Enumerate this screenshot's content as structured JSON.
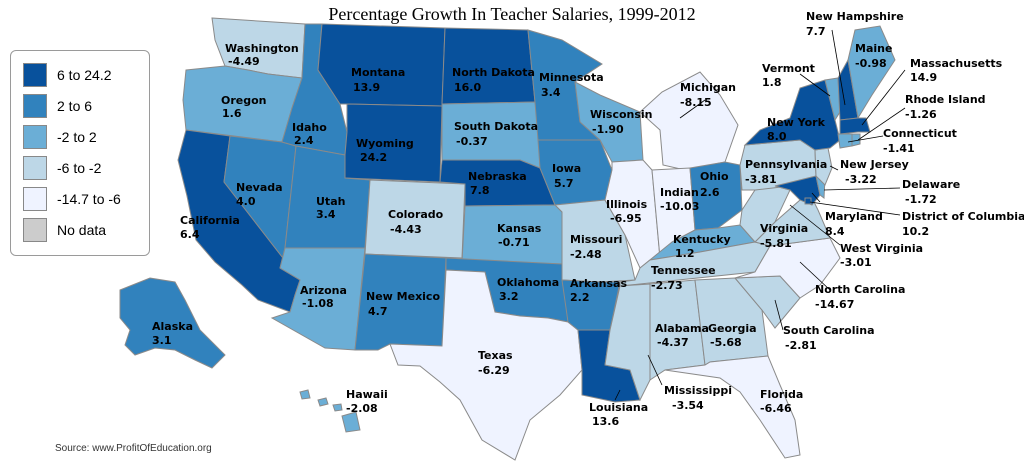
{
  "title": "Percentage Growth In Teacher Salaries, 1999-2012",
  "source": "Source: www.ProfitOfEducation.org",
  "colors": {
    "c1": "#08519c",
    "c2": "#3182bd",
    "c3": "#6baed6",
    "c4": "#bdd7e7",
    "c5": "#eff3ff",
    "nodata": "#cccccc",
    "border": "#8a8a8a"
  },
  "legend": [
    {
      "label": "6 to 24.2",
      "color": "#08519c"
    },
    {
      "label": "2 to 6",
      "color": "#3182bd"
    },
    {
      "label": "-2 to 2",
      "color": "#6baed6"
    },
    {
      "label": "-6 to -2",
      "color": "#bdd7e7"
    },
    {
      "label": "-14.7 to -6",
      "color": "#eff3ff"
    },
    {
      "label": "No data",
      "color": "#cccccc"
    }
  ],
  "states": {
    "washington": {
      "name": "Washington",
      "value": "-4.49"
    },
    "oregon": {
      "name": "Oregon",
      "value": "1.6"
    },
    "california": {
      "name": "California",
      "value": "6.4"
    },
    "nevada": {
      "name": "Nevada",
      "value": "4.0"
    },
    "idaho": {
      "name": "Idaho",
      "value": "2.4"
    },
    "montana": {
      "name": "Montana",
      "value": "13.9"
    },
    "wyoming": {
      "name": "Wyoming",
      "value": "24.2"
    },
    "utah": {
      "name": "Utah",
      "value": "3.4"
    },
    "arizona": {
      "name": "Arizona",
      "value": "-1.08"
    },
    "colorado": {
      "name": "Colorado",
      "value": "-4.43"
    },
    "new_mexico": {
      "name": "New Mexico",
      "value": "4.7"
    },
    "north_dakota": {
      "name": "North Dakota",
      "value": "16.0"
    },
    "south_dakota": {
      "name": "South Dakota",
      "value": "-0.37"
    },
    "nebraska": {
      "name": "Nebraska",
      "value": "7.8"
    },
    "kansas": {
      "name": "Kansas",
      "value": "-0.71"
    },
    "oklahoma": {
      "name": "Oklahoma",
      "value": "3.2"
    },
    "texas": {
      "name": "Texas",
      "value": "-6.29"
    },
    "minnesota": {
      "name": "Minnesota",
      "value": "3.4"
    },
    "iowa": {
      "name": "Iowa",
      "value": "5.7"
    },
    "missouri": {
      "name": "Missouri",
      "value": "-2.48"
    },
    "arkansas": {
      "name": "Arkansas",
      "value": "2.2"
    },
    "louisiana": {
      "name": "Louisiana",
      "value": "13.6"
    },
    "wisconsin": {
      "name": "Wisconsin",
      "value": "-1.90"
    },
    "illinois": {
      "name": "Illinois",
      "value": "-6.95"
    },
    "michigan": {
      "name": "Michigan",
      "value": "-8.15"
    },
    "indiana": {
      "name": "Indian",
      "value": "-10.03"
    },
    "ohio": {
      "name": "Ohio",
      "value": "2.6"
    },
    "kentucky": {
      "name": "Kentucky",
      "value": "1.2"
    },
    "tennessee": {
      "name": "Tennessee",
      "value": "-2.73"
    },
    "mississippi": {
      "name": "Mississippi",
      "value": "-3.54"
    },
    "alabama": {
      "name": "Alabama",
      "value": "-4.37"
    },
    "georgia": {
      "name": "Georgia",
      "value": "-5.68"
    },
    "florida": {
      "name": "Florida",
      "value": "-6.46"
    },
    "south_carolina": {
      "name": "South Carolina",
      "value": "-2.81"
    },
    "north_carolina": {
      "name": "North Carolina",
      "value": "-14.67"
    },
    "virginia": {
      "name": "Virginia",
      "value": "-5.81"
    },
    "west_virginia": {
      "name": "West Virginia",
      "value": "-3.01"
    },
    "pennsylvania": {
      "name": "Pennsylvania",
      "value": "-3.81"
    },
    "new_york": {
      "name": "New York",
      "value": "8.0"
    },
    "vermont": {
      "name": "Vermont",
      "value": "1.8"
    },
    "new_hampshire": {
      "name": "New Hampshire",
      "value": "7.7"
    },
    "maine": {
      "name": "Maine",
      "value": "-0.98"
    },
    "massachusetts": {
      "name": "Massachusetts",
      "value": "14.9"
    },
    "rhode_island": {
      "name": "Rhode Island",
      "value": "-1.26"
    },
    "connecticut": {
      "name": "Connecticut",
      "value": "-1.41"
    },
    "new_jersey": {
      "name": "New Jersey",
      "value": "-3.22"
    },
    "delaware": {
      "name": "Delaware",
      "value": "-1.72"
    },
    "maryland": {
      "name": "Maryland",
      "value": "8.4"
    },
    "dc": {
      "name": "District of Columbia",
      "value": "10.2"
    },
    "alaska": {
      "name": "Alaska",
      "value": "3.1"
    },
    "hawaii": {
      "name": "Hawaii",
      "value": "-2.08"
    }
  }
}
